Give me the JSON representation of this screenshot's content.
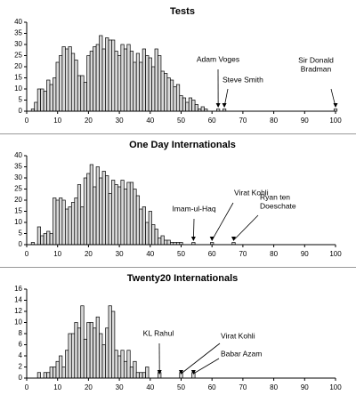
{
  "chart_data": [
    {
      "type": "bar",
      "title": "Tests",
      "color": "#d9d9d9",
      "x": [
        1,
        2,
        3,
        4,
        5,
        6,
        7,
        8,
        9,
        10,
        11,
        12,
        13,
        14,
        15,
        16,
        17,
        18,
        19,
        20,
        21,
        22,
        23,
        24,
        25,
        26,
        27,
        28,
        29,
        30,
        31,
        32,
        33,
        34,
        35,
        36,
        37,
        38,
        39,
        40,
        41,
        42,
        43,
        44,
        45,
        46,
        47,
        48,
        49,
        50,
        51,
        52,
        53,
        54,
        55,
        56,
        57,
        58,
        62,
        64,
        100
      ],
      "values": [
        0,
        1,
        4,
        10,
        10,
        9,
        14,
        12,
        15,
        22,
        25,
        29,
        28,
        29,
        26,
        23,
        16,
        16,
        13,
        25,
        27,
        29,
        30,
        34,
        28,
        33,
        32,
        32,
        27,
        25,
        30,
        28,
        30,
        27,
        22,
        26,
        22,
        28,
        25,
        24,
        20,
        28,
        25,
        18,
        17,
        15,
        14,
        11,
        12,
        7,
        6,
        4,
        6,
        5,
        3,
        1,
        2,
        1,
        1,
        1,
        1
      ],
      "xlim": [
        0,
        100
      ],
      "xticks": [
        0,
        10,
        20,
        30,
        40,
        50,
        60,
        70,
        80,
        90,
        100
      ],
      "ylim": [
        0,
        40
      ],
      "yticks": [
        0,
        5,
        10,
        15,
        20,
        25,
        30,
        35,
        40
      ],
      "annotations": [
        {
          "label": [
            "Adam Voges"
          ],
          "x": 62
        },
        {
          "label": [
            "Steve Smith"
          ],
          "x": 64
        },
        {
          "label": [
            "Sir Donald",
            "Bradman"
          ],
          "x": 100
        }
      ]
    },
    {
      "type": "bar",
      "title": "One Day Internationals",
      "color": "#d9d9d9",
      "x": [
        1,
        2,
        3,
        4,
        5,
        6,
        7,
        8,
        9,
        10,
        11,
        12,
        13,
        14,
        15,
        16,
        17,
        18,
        19,
        20,
        21,
        22,
        23,
        24,
        25,
        26,
        27,
        28,
        29,
        30,
        31,
        32,
        33,
        34,
        35,
        36,
        37,
        38,
        39,
        40,
        41,
        42,
        43,
        44,
        45,
        46,
        47,
        48,
        49,
        50,
        54,
        60,
        67
      ],
      "values": [
        0,
        1,
        0,
        8,
        4,
        5,
        6,
        5,
        21,
        20,
        21,
        20,
        16,
        17,
        19,
        21,
        27,
        17,
        30,
        32,
        36,
        26,
        35,
        30,
        33,
        31,
        23,
        29,
        27,
        26,
        29,
        25,
        28,
        28,
        25,
        22,
        16,
        17,
        10,
        15,
        9,
        7,
        3,
        4,
        2,
        2,
        1,
        1,
        1,
        1,
        1,
        1,
        1
      ],
      "xlim": [
        0,
        100
      ],
      "xticks": [
        0,
        10,
        20,
        30,
        40,
        50,
        60,
        70,
        80,
        90,
        100
      ],
      "ylim": [
        0,
        40
      ],
      "yticks": [
        0,
        5,
        10,
        15,
        20,
        25,
        30,
        35,
        40
      ],
      "annotations": [
        {
          "label": [
            "Imam-ul-Haq"
          ],
          "x": 54
        },
        {
          "label": [
            "Virat Kohli"
          ],
          "x": 60
        },
        {
          "label": [
            "Ryan ten",
            "Doeschate"
          ],
          "x": 67
        }
      ]
    },
    {
      "type": "bar",
      "title": "Twenty20 Internationals",
      "color": "#d9d9d9",
      "x": [
        4,
        5,
        6,
        7,
        8,
        9,
        10,
        11,
        12,
        13,
        14,
        15,
        16,
        17,
        18,
        19,
        20,
        21,
        22,
        23,
        24,
        25,
        26,
        27,
        28,
        29,
        30,
        31,
        32,
        33,
        34,
        35,
        36,
        37,
        38,
        39,
        43,
        50,
        54
      ],
      "values": [
        1,
        0,
        1,
        1,
        2,
        2,
        3,
        4,
        2,
        5,
        8,
        8,
        10,
        9,
        13,
        7,
        10,
        10,
        9,
        11,
        8,
        6,
        9,
        13,
        12,
        5,
        4,
        5,
        3,
        5,
        2,
        3,
        1,
        1,
        1,
        2,
        1,
        1,
        1
      ],
      "xlim": [
        0,
        100
      ],
      "xticks": [
        0,
        10,
        20,
        30,
        40,
        50,
        60,
        70,
        80,
        90,
        100
      ],
      "ylim": [
        0,
        16
      ],
      "yticks": [
        0,
        2,
        4,
        6,
        8,
        10,
        12,
        14,
        16
      ],
      "annotations": [
        {
          "label": [
            "KL Rahul"
          ],
          "x": 43
        },
        {
          "label": [
            "Virat Kohli"
          ],
          "x": 50
        },
        {
          "label": [
            "Babar Azam"
          ],
          "x": 54
        }
      ]
    }
  ]
}
